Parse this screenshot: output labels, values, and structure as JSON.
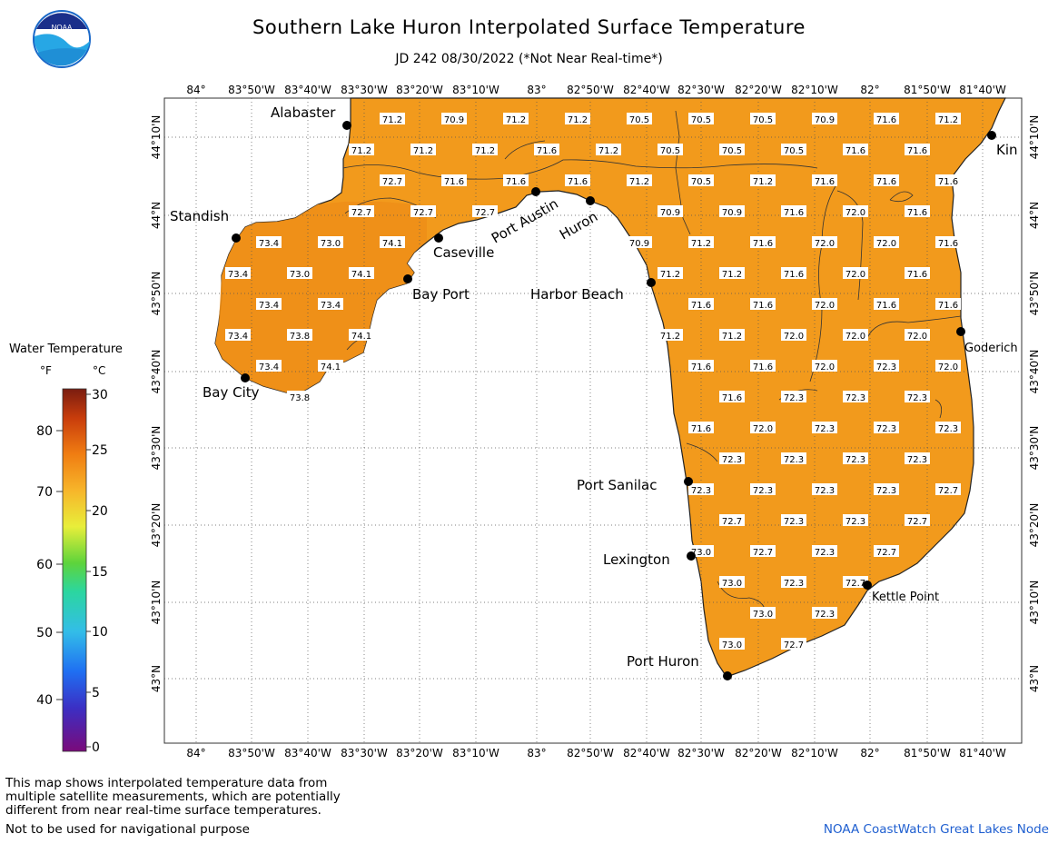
{
  "header": {
    "title": "Southern Lake Huron Interpolated Surface Temperature",
    "subtitle": "JD 242 08/30/2022 (*Not Near Real-time*)"
  },
  "logo": {
    "text": "NOAA"
  },
  "legend": {
    "title": "Water Temperature",
    "unit_f": "°F",
    "unit_c": "°C",
    "f_ticks": [
      "80",
      "70",
      "60",
      "50",
      "40"
    ],
    "c_ticks": [
      "30",
      "25",
      "20",
      "15",
      "10",
      "5",
      "0"
    ]
  },
  "axes": {
    "lon_labels": [
      "84°",
      "83°50'W",
      "83°40'W",
      "83°30'W",
      "83°20'W",
      "83°10'W",
      "83°",
      "82°50'W",
      "82°40'W",
      "82°30'W",
      "82°20'W",
      "82°10'W",
      "82°",
      "81°50'W",
      "81°40'W"
    ],
    "lat_labels": [
      "44°10'N",
      "44°N",
      "43°50'N",
      "43°40'N",
      "43°30'N",
      "43°20'N",
      "43°10'N",
      "43°N"
    ]
  },
  "places": [
    {
      "name": "Alabaster"
    },
    {
      "name": "Standish"
    },
    {
      "name": "Caseville"
    },
    {
      "name": "Port Austin"
    },
    {
      "name": "Huron"
    },
    {
      "name": "Bay Port"
    },
    {
      "name": "Harbor Beach"
    },
    {
      "name": "Bay City"
    },
    {
      "name": "Kin"
    },
    {
      "name": "Goderich"
    },
    {
      "name": "Port Sanilac"
    },
    {
      "name": "Lexington"
    },
    {
      "name": "Kettle Point"
    },
    {
      "name": "Port Huron"
    }
  ],
  "temperature_labels": [
    {
      "row": "44°12'",
      "values": [
        "71.2",
        "70.9",
        "71.2",
        "71.2",
        "70.5",
        "70.5",
        "70.5",
        "70.9",
        "71.6",
        "71.2"
      ]
    },
    {
      "row": "44°07'",
      "values": [
        "71.2",
        "71.2",
        "71.2",
        "71.6",
        "71.2",
        "70.5",
        "70.5",
        "70.5",
        "71.6",
        "71.6"
      ]
    },
    {
      "row": "44°02'",
      "values": [
        "72.7",
        "71.6",
        "71.6",
        "71.6",
        "71.2",
        "70.5",
        "71.2",
        "71.6",
        "71.6",
        "71.6"
      ]
    },
    {
      "row": "43°59'",
      "values": [
        "72.7",
        "72.7",
        "72.7",
        "70.9",
        "70.9",
        "71.6",
        "72.0",
        "71.6"
      ]
    },
    {
      "row": "43°55'",
      "values": [
        "73.4",
        "73.0",
        "74.1",
        "70.9",
        "71.2",
        "71.6",
        "72.0",
        "72.0",
        "71.6"
      ]
    },
    {
      "row": "43°51'",
      "values": [
        "73.4",
        "73.0",
        "74.1",
        "71.2",
        "71.2",
        "71.6",
        "72.0",
        "71.6"
      ]
    },
    {
      "row": "43°46'",
      "values": [
        "73.4",
        "73.4",
        "71.6",
        "71.6",
        "72.0",
        "71.6",
        "71.6"
      ]
    },
    {
      "row": "43°42'",
      "values": [
        "73.4",
        "73.8",
        "74.1",
        "71.2",
        "71.2",
        "72.0",
        "72.0",
        "72.0"
      ]
    },
    {
      "row": "43°39'",
      "values": [
        "73.4",
        "74.1",
        "71.6",
        "71.6",
        "72.0",
        "72.3",
        "72.0"
      ]
    },
    {
      "row": "43°36'",
      "values": [
        "73.8",
        "71.6",
        "72.3",
        "72.3",
        "72.3"
      ]
    },
    {
      "row": "43°31'",
      "values": [
        "71.6",
        "72.0",
        "72.3",
        "72.3",
        "72.3"
      ]
    },
    {
      "row": "43°27'",
      "values": [
        "72.3",
        "72.3",
        "72.3",
        "72.3"
      ]
    },
    {
      "row": "43°23'",
      "values": [
        "72.3",
        "72.3",
        "72.3",
        "72.3",
        "72.7"
      ]
    },
    {
      "row": "43°19'",
      "values": [
        "72.7",
        "72.3",
        "72.3",
        "72.7"
      ]
    },
    {
      "row": "43°14'",
      "values": [
        "73.0",
        "72.7",
        "72.3",
        "72.7"
      ]
    },
    {
      "row": "43°10'",
      "values": [
        "73.0",
        "72.3",
        "72.7"
      ]
    },
    {
      "row": "43°06'",
      "values": [
        "73.0",
        "72.3"
      ]
    },
    {
      "row": "43°02'",
      "values": [
        "73.0",
        "72.7"
      ]
    }
  ],
  "footer": {
    "note_line1": "This map shows interpolated temperature data from",
    "note_line2": "multiple satellite measurements, which are potentially",
    "note_line3": "different from near real-time surface temperatures.",
    "nav_warning": "Not to be used for navigational purpose",
    "credit": "NOAA CoastWatch Great Lakes Node"
  },
  "colors": {
    "water": "#f29a1c",
    "water_light": "#f5a32c",
    "grid": "#555555"
  }
}
